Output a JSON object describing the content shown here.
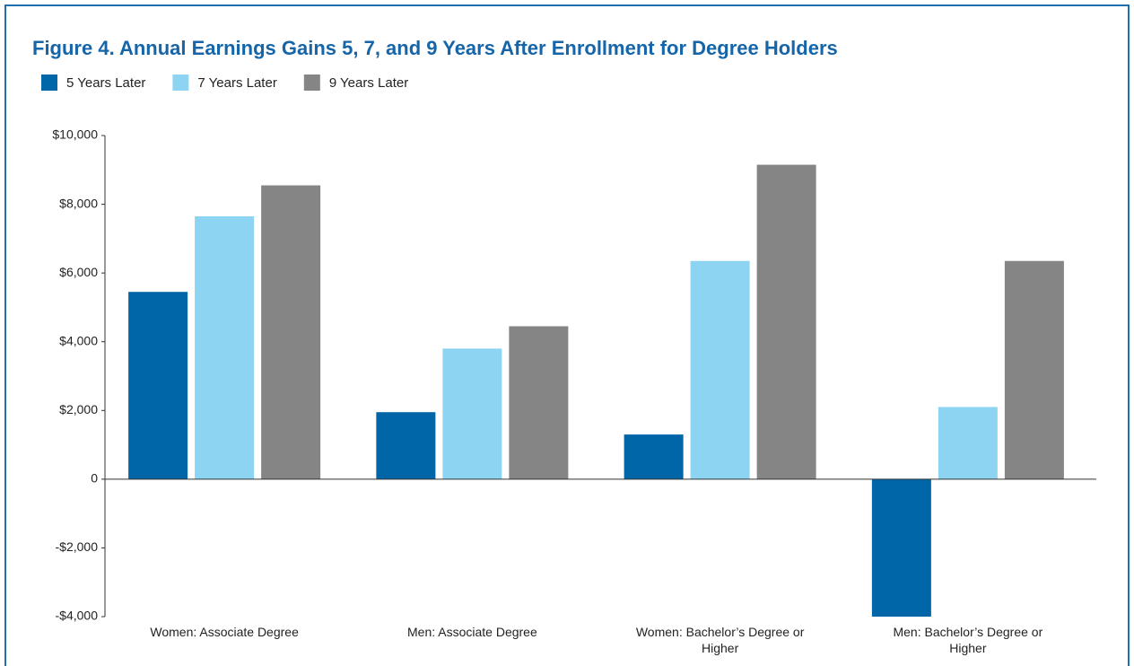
{
  "chart_data": {
    "type": "bar",
    "title": "Figure 4. Annual Earnings Gains 5, 7, and 9 Years After Enrollment for Degree Holders",
    "categories": [
      "Women: Associate Degree",
      "Men: Associate Degree",
      "Women: Bachelor’s Degree or Higher",
      "Men: Bachelor’s Degree or Higher"
    ],
    "series": [
      {
        "name": "5 Years Later",
        "color": "#0066a8",
        "values": [
          5450,
          1950,
          1300,
          -4000
        ]
      },
      {
        "name": "7 Years Later",
        "color": "#8dd3f2",
        "values": [
          7650,
          3800,
          6350,
          2100
        ]
      },
      {
        "name": "9 Years Later",
        "color": "#858585",
        "values": [
          8550,
          4450,
          9150,
          6350
        ]
      }
    ],
    "ylim": [
      -4000,
      10000
    ],
    "yticks": [
      {
        "value": -4000,
        "label": "-$4,000"
      },
      {
        "value": -2000,
        "label": "-$2,000"
      },
      0,
      {
        "value": 2000,
        "label": "$2,000"
      },
      {
        "value": 4000,
        "label": "$4,000"
      },
      {
        "value": 6000,
        "label": "$6,000"
      },
      {
        "value": 8000,
        "label": "$8,000"
      },
      {
        "value": 10000,
        "label": "$10,000"
      }
    ],
    "legend": "top-left",
    "grid": false
  }
}
